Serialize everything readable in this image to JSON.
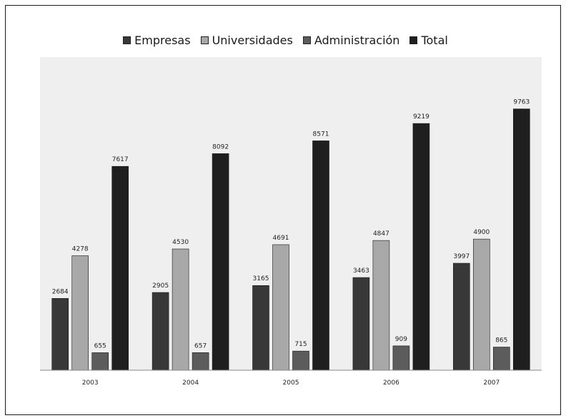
{
  "chart_data": {
    "type": "bar",
    "categories": [
      "2003",
      "2004",
      "2005",
      "2006",
      "2007"
    ],
    "series": [
      {
        "name": "Empresas",
        "color": "#383838",
        "values": [
          2684,
          2905,
          3165,
          3463,
          3997
        ]
      },
      {
        "name": "Universidades",
        "color": "#a8a8a8",
        "values": [
          4278,
          4530,
          4691,
          4847,
          4900
        ]
      },
      {
        "name": "Administración",
        "color": "#5c5c5c",
        "values": [
          655,
          657,
          715,
          909,
          865
        ]
      },
      {
        "name": "Total",
        "color": "#1f1f1f",
        "values": [
          7617,
          8092,
          8571,
          9219,
          9763
        ]
      }
    ],
    "title": "",
    "xlabel": "",
    "ylabel": "",
    "ylim": [
      0,
      11700
    ],
    "legend_position": "top",
    "grid": false,
    "plot_background": "#efefef"
  }
}
